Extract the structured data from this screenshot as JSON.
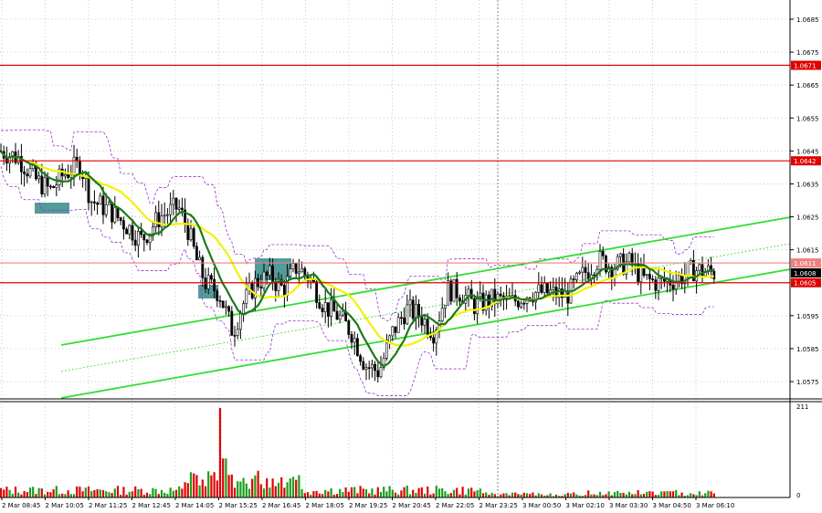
{
  "chart_data": {
    "type": "candlestick",
    "price_ticks": [
      "1.0685",
      "1.0675",
      "1.0665",
      "1.0655",
      "1.0645",
      "1.0635",
      "1.0625",
      "1.0615",
      "1.0595",
      "1.0585",
      "1.0575"
    ],
    "volume_ticks": [
      "211",
      "0"
    ],
    "time_labels": [
      "2 Mar 08:45",
      "2 Mar 10:05",
      "2 Mar 11:25",
      "2 Mar 12:45",
      "2 Mar 14:05",
      "2 Mar 15:25",
      "2 Mar 16:45",
      "2 Mar 18:05",
      "2 Mar 19:25",
      "2 Mar 20:45",
      "2 Mar 22:05",
      "2 Mar 23:25",
      "3 Mar 00:50",
      "3 Mar 02:10",
      "3 Mar 03:30",
      "3 Mar 04:50",
      "3 Mar 06:10"
    ],
    "price_range": [
      1.057,
      1.069
    ],
    "volume_range": [
      0,
      211
    ],
    "grid": true,
    "levels": [
      {
        "label": "1.0671",
        "value": 1.0671,
        "color": "#e00000"
      },
      {
        "label": "1.0642",
        "value": 1.0642,
        "color": "#e00000"
      },
      {
        "label": "1.0605",
        "value": 1.0605,
        "color": "#e00000"
      },
      {
        "label": "1.0611",
        "value": 1.0611,
        "color": "#f08080"
      }
    ],
    "current_price": {
      "label": "1.0608",
      "value": 1.0608,
      "color": "#000000"
    },
    "colors": {
      "bull": "#1a9e1a",
      "bear": "#e00000",
      "ma_fast": "#1a7a1a",
      "ma_slow": "#f2f200",
      "channel": "#33dd33",
      "bands": "#9933cc"
    }
  }
}
